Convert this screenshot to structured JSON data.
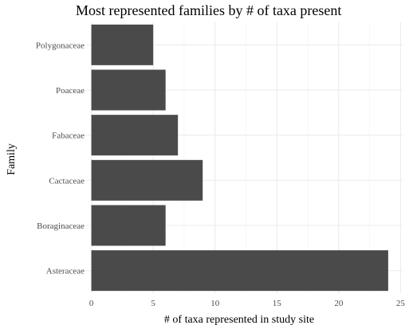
{
  "chart_data": {
    "type": "bar",
    "orientation": "horizontal",
    "title": "Most represented families by # of taxa present",
    "xlabel": "# of taxa represented in study site",
    "ylabel": "Family",
    "categories": [
      "Polygonaceae",
      "Poaceae",
      "Fabaceae",
      "Cactaceae",
      "Boraginaceae",
      "Asteraceae"
    ],
    "values": [
      5,
      6,
      7,
      9,
      6,
      24
    ],
    "xlim": [
      0,
      25
    ],
    "xticks": [
      0,
      5,
      10,
      15,
      20,
      25
    ],
    "grid": true,
    "legend": "none",
    "colors": {
      "bar": "#4a4a4a",
      "grid_major": "#ebebeb",
      "grid_minor": "#f3f3f3",
      "background": "#ffffff"
    }
  }
}
